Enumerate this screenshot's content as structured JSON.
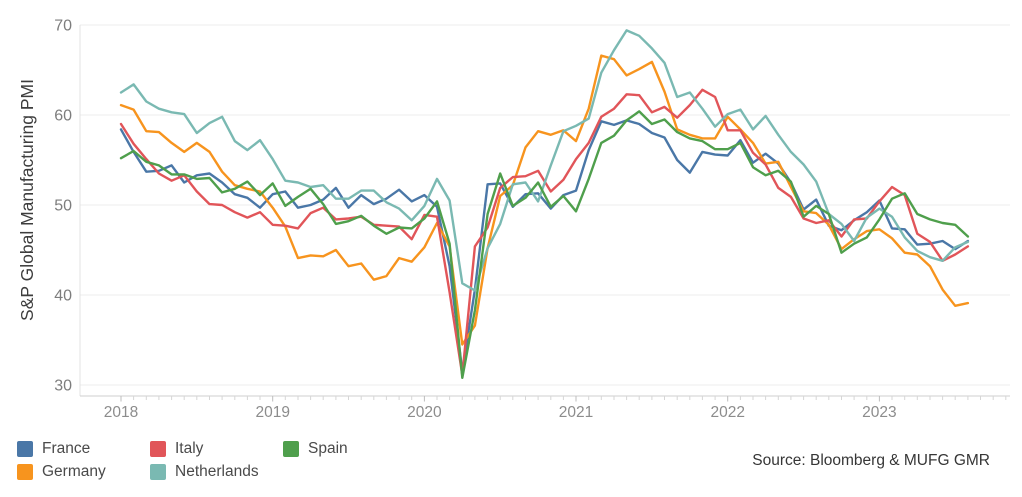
{
  "source": {
    "text": "Source: Bloomberg & MUFG GMR"
  },
  "chart_data": {
    "type": "line",
    "title": "",
    "xlabel": "",
    "ylabel": "S&P Global Manufacturing PMI",
    "ylim": [
      28.8,
      70.5
    ],
    "yticks": [
      30,
      40,
      50,
      60,
      70
    ],
    "grid": "horizontal",
    "legend_position": "bottom-left",
    "x_frequency": "monthly",
    "x_start": "2018-01",
    "x_end": "2023-08",
    "xtick_labels": [
      "2018",
      "2019",
      "2020",
      "2021",
      "2022",
      "2023"
    ],
    "x_months": [
      "2018-01",
      "2018-02",
      "2018-03",
      "2018-04",
      "2018-05",
      "2018-06",
      "2018-07",
      "2018-08",
      "2018-09",
      "2018-10",
      "2018-11",
      "2018-12",
      "2019-01",
      "2019-02",
      "2019-03",
      "2019-04",
      "2019-05",
      "2019-06",
      "2019-07",
      "2019-08",
      "2019-09",
      "2019-10",
      "2019-11",
      "2019-12",
      "2020-01",
      "2020-02",
      "2020-03",
      "2020-04",
      "2020-05",
      "2020-06",
      "2020-07",
      "2020-08",
      "2020-09",
      "2020-10",
      "2020-11",
      "2020-12",
      "2021-01",
      "2021-02",
      "2021-03",
      "2021-04",
      "2021-05",
      "2021-06",
      "2021-07",
      "2021-08",
      "2021-09",
      "2021-10",
      "2021-11",
      "2021-12",
      "2022-01",
      "2022-02",
      "2022-03",
      "2022-04",
      "2022-05",
      "2022-06",
      "2022-07",
      "2022-08",
      "2022-09",
      "2022-10",
      "2022-11",
      "2022-12",
      "2023-01",
      "2023-02",
      "2023-03",
      "2023-04",
      "2023-05",
      "2023-06",
      "2023-07",
      "2023-08"
    ],
    "series": [
      {
        "name": "France",
        "color": "#4a77a7",
        "values": [
          58.4,
          55.9,
          53.7,
          53.8,
          54.4,
          52.5,
          53.3,
          53.5,
          52.5,
          51.2,
          50.8,
          49.7,
          51.2,
          51.5,
          49.7,
          50.0,
          50.6,
          51.9,
          49.7,
          51.1,
          50.1,
          50.7,
          51.7,
          50.4,
          51.1,
          49.8,
          43.2,
          31.5,
          40.6,
          52.3,
          52.4,
          49.8,
          51.2,
          51.3,
          49.6,
          51.1,
          51.6,
          56.1,
          59.3,
          58.9,
          59.4,
          59.0,
          58.0,
          57.5,
          55.0,
          53.6,
          55.9,
          55.6,
          55.5,
          57.2,
          54.7,
          55.7,
          54.6,
          52.5,
          49.5,
          50.6,
          47.7,
          47.2,
          48.3,
          49.2,
          50.5,
          47.4,
          47.3,
          45.6,
          45.7,
          46.0,
          45.1,
          46.0
        ]
      },
      {
        "name": "Germany",
        "color": "#f7941e",
        "values": [
          61.1,
          60.6,
          58.2,
          58.1,
          56.9,
          55.9,
          56.9,
          55.9,
          53.7,
          52.2,
          51.8,
          51.5,
          49.7,
          47.6,
          44.1,
          44.4,
          44.3,
          45.0,
          43.2,
          43.5,
          41.7,
          42.1,
          44.1,
          43.7,
          45.3,
          48.0,
          45.4,
          34.5,
          36.6,
          45.2,
          51.0,
          52.2,
          56.4,
          58.2,
          57.8,
          58.3,
          57.1,
          60.7,
          66.6,
          66.2,
          64.4,
          65.1,
          65.9,
          62.6,
          58.4,
          57.8,
          57.4,
          57.4,
          59.8,
          58.4,
          56.9,
          54.6,
          54.8,
          52.0,
          49.3,
          49.1,
          47.8,
          45.1,
          46.2,
          47.1,
          47.3,
          46.3,
          44.7,
          44.5,
          43.2,
          40.6,
          38.8,
          39.1
        ]
      },
      {
        "name": "Italy",
        "color": "#e15559",
        "values": [
          59.0,
          56.8,
          55.1,
          53.5,
          52.7,
          53.3,
          51.5,
          50.1,
          50.0,
          49.2,
          48.6,
          49.2,
          47.8,
          47.7,
          47.4,
          49.1,
          49.7,
          48.4,
          48.5,
          48.7,
          47.8,
          47.7,
          47.6,
          46.2,
          48.9,
          48.7,
          40.3,
          31.1,
          45.4,
          47.5,
          51.9,
          53.1,
          53.2,
          53.8,
          51.5,
          52.8,
          55.1,
          56.9,
          59.8,
          60.7,
          62.3,
          62.2,
          60.3,
          60.9,
          59.7,
          61.1,
          62.8,
          62.0,
          58.3,
          58.3,
          55.8,
          54.5,
          51.9,
          50.9,
          48.5,
          48.0,
          48.3,
          46.5,
          48.4,
          48.5,
          50.4,
          52.0,
          51.1,
          46.8,
          45.9,
          43.8,
          44.5,
          45.4
        ]
      },
      {
        "name": "Netherlands",
        "color": "#7ab9b2",
        "values": [
          62.5,
          63.4,
          61.5,
          60.7,
          60.3,
          60.1,
          58.0,
          59.1,
          59.8,
          57.1,
          56.1,
          57.2,
          55.1,
          52.7,
          52.5,
          52.0,
          52.2,
          50.7,
          50.7,
          51.6,
          51.6,
          50.3,
          49.6,
          48.3,
          49.9,
          52.9,
          50.5,
          41.3,
          40.5,
          45.2,
          47.9,
          52.3,
          52.5,
          50.4,
          54.4,
          58.2,
          58.8,
          59.6,
          64.7,
          67.2,
          69.4,
          68.8,
          67.4,
          65.8,
          62.0,
          62.5,
          60.7,
          58.7,
          60.1,
          60.6,
          58.4,
          59.9,
          57.8,
          55.9,
          54.5,
          52.6,
          49.0,
          47.9,
          46.0,
          48.6,
          49.6,
          48.7,
          46.4,
          44.9,
          44.2,
          43.8,
          45.3,
          45.9
        ]
      },
      {
        "name": "Spain",
        "color": "#4f9f4c",
        "values": [
          55.2,
          56.0,
          54.8,
          54.4,
          53.4,
          53.4,
          52.9,
          53.0,
          51.4,
          51.8,
          52.6,
          51.1,
          52.4,
          49.9,
          50.9,
          51.8,
          50.1,
          47.9,
          48.2,
          48.8,
          47.7,
          46.8,
          47.5,
          47.4,
          48.5,
          50.4,
          45.7,
          30.8,
          38.3,
          49.0,
          53.5,
          49.9,
          50.8,
          52.5,
          49.8,
          51.0,
          49.3,
          52.9,
          56.9,
          57.7,
          59.4,
          60.4,
          59.0,
          59.5,
          58.1,
          57.4,
          57.1,
          56.2,
          56.2,
          56.9,
          54.2,
          53.3,
          53.8,
          52.6,
          48.7,
          49.9,
          49.0,
          44.7,
          45.7,
          46.4,
          48.4,
          50.7,
          51.3,
          49.0,
          48.4,
          48.0,
          47.8,
          46.5
        ]
      }
    ]
  }
}
